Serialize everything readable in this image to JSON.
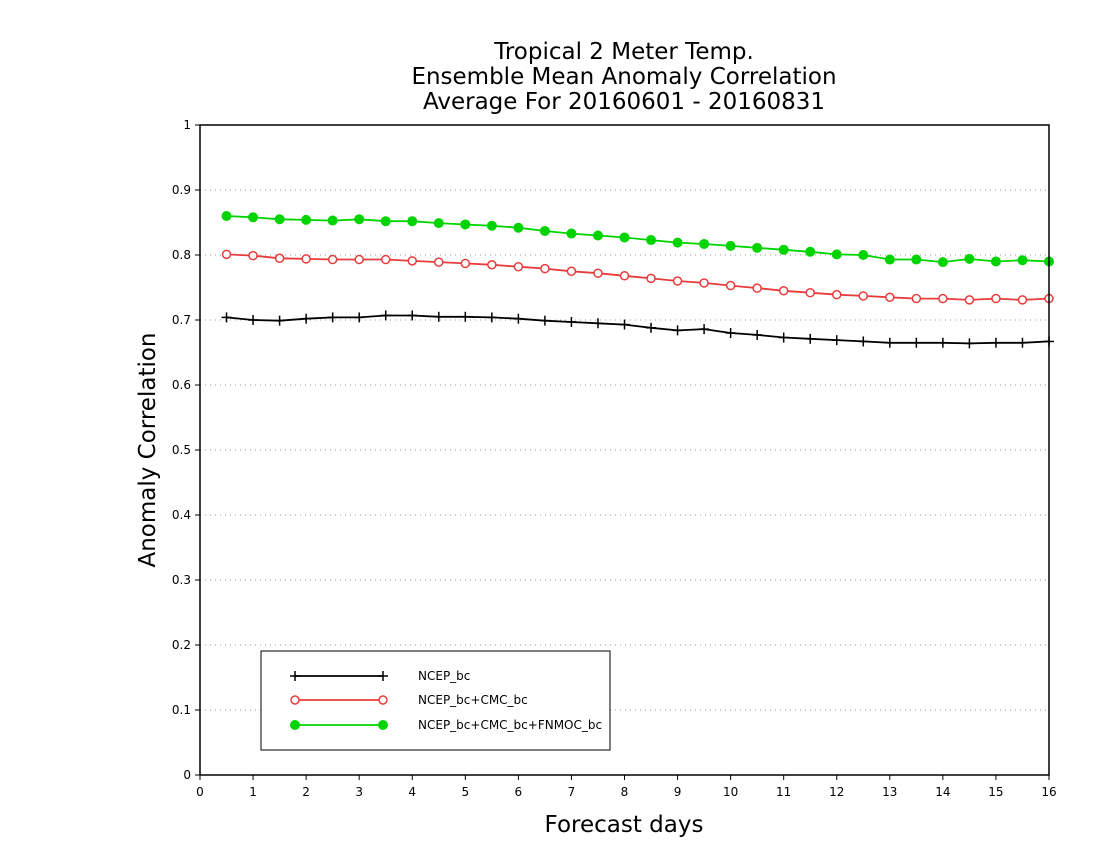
{
  "chart_data": {
    "type": "line",
    "title": [
      "Tropical 2 Meter Temp.",
      "Ensemble Mean Anomaly Correlation",
      "Average For 20160601 - 20160831"
    ],
    "xlabel": "Forecast days",
    "ylabel": "Anomaly Correlation",
    "xlim": [
      0,
      16
    ],
    "ylim": [
      0,
      1
    ],
    "xticks": [
      0,
      1,
      2,
      3,
      4,
      5,
      6,
      7,
      8,
      9,
      10,
      11,
      12,
      13,
      14,
      15,
      16
    ],
    "yticks": [
      0,
      0.1,
      0.2,
      0.3,
      0.4,
      0.5,
      0.6,
      0.7,
      0.8,
      0.9,
      1
    ],
    "ytick_labels": [
      "0",
      "0.1",
      "0.2",
      "0.3",
      "0.4",
      "0.5",
      "0.6",
      "0.7",
      "0.8",
      "0.9",
      "1"
    ],
    "grid": "horizontal-dotted",
    "legend_position": "bottom-left",
    "x": [
      0.5,
      1,
      1.5,
      2,
      2.5,
      3,
      3.5,
      4,
      4.5,
      5,
      5.5,
      6,
      6.5,
      7,
      7.5,
      8,
      8.5,
      9,
      9.5,
      10,
      10.5,
      11,
      11.5,
      12,
      12.5,
      13,
      13.5,
      14,
      14.5,
      15,
      15.5,
      16
    ],
    "series": [
      {
        "name": "NCEP_bc",
        "color": "#000000",
        "marker": "plus",
        "values": [
          0.704,
          0.7,
          0.699,
          0.702,
          0.704,
          0.704,
          0.707,
          0.707,
          0.705,
          0.705,
          0.704,
          0.702,
          0.699,
          0.697,
          0.695,
          0.693,
          0.688,
          0.684,
          0.686,
          0.68,
          0.677,
          0.673,
          0.671,
          0.669,
          0.667,
          0.665,
          0.665,
          0.665,
          0.664,
          0.665,
          0.665,
          0.667
        ]
      },
      {
        "name": "NCEP_bc+CMC_bc",
        "color": "#e83c3c",
        "marker": "open-circle",
        "values": [
          0.801,
          0.799,
          0.795,
          0.794,
          0.793,
          0.793,
          0.793,
          0.791,
          0.789,
          0.787,
          0.785,
          0.782,
          0.779,
          0.775,
          0.772,
          0.768,
          0.764,
          0.76,
          0.757,
          0.753,
          0.749,
          0.745,
          0.742,
          0.739,
          0.737,
          0.735,
          0.733,
          0.733,
          0.731,
          0.733,
          0.731,
          0.733
        ]
      },
      {
        "name": "NCEP_bc+CMC_bc+FNMOC_bc",
        "color": "#00d400",
        "marker": "filled-circle",
        "values": [
          0.86,
          0.858,
          0.855,
          0.854,
          0.853,
          0.855,
          0.852,
          0.852,
          0.849,
          0.847,
          0.845,
          0.842,
          0.837,
          0.833,
          0.83,
          0.827,
          0.823,
          0.819,
          0.817,
          0.814,
          0.811,
          0.808,
          0.805,
          0.801,
          0.8,
          0.793,
          0.793,
          0.789,
          0.794,
          0.79,
          0.792,
          0.79
        ]
      }
    ]
  }
}
